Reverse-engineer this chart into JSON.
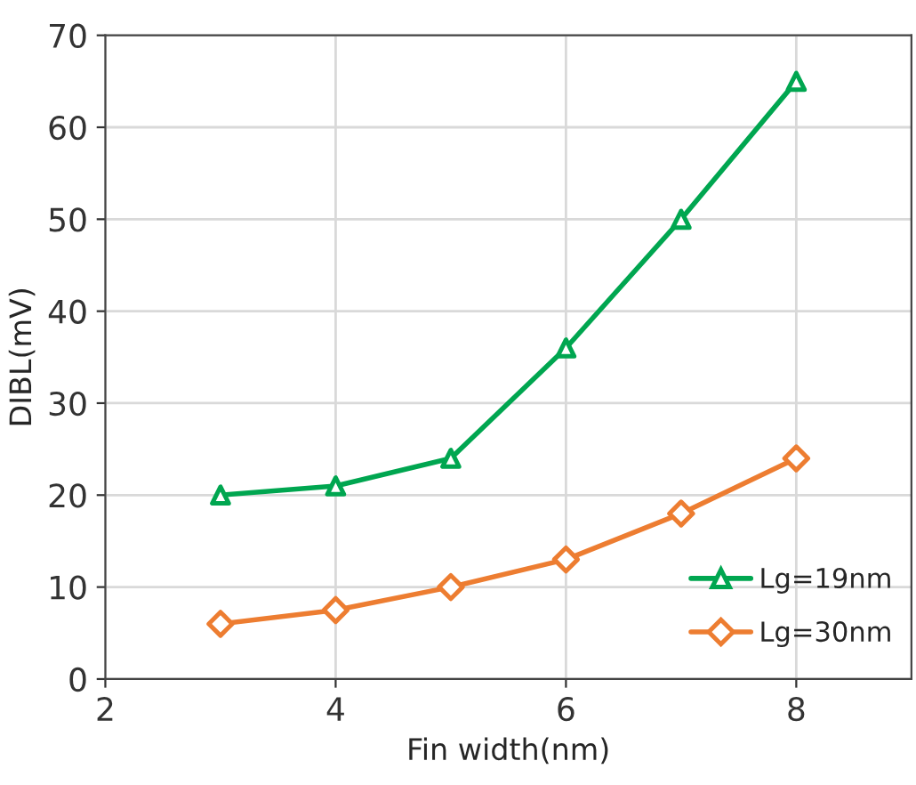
{
  "chart_data": {
    "type": "line",
    "xlabel": "Fin width(nm)",
    "ylabel": "DIBL(mV)",
    "x": [
      3,
      4,
      5,
      6,
      7,
      8
    ],
    "series": [
      {
        "name": "Lg=19nm",
        "color": "#00a650",
        "marker": "triangle",
        "values": [
          20,
          21,
          24,
          36,
          50,
          65
        ]
      },
      {
        "name": "Lg=30nm",
        "color": "#ed7d31",
        "marker": "diamond",
        "values": [
          6,
          7.5,
          10,
          13,
          18,
          24
        ]
      }
    ],
    "xlim": [
      2,
      9
    ],
    "xticks": [
      2,
      4,
      6,
      8
    ],
    "ylim": [
      0,
      70
    ],
    "yticks": [
      0,
      10,
      20,
      30,
      40,
      50,
      60,
      70
    ],
    "grid": true,
    "legend": "bottom right",
    "line_style": "solid"
  }
}
